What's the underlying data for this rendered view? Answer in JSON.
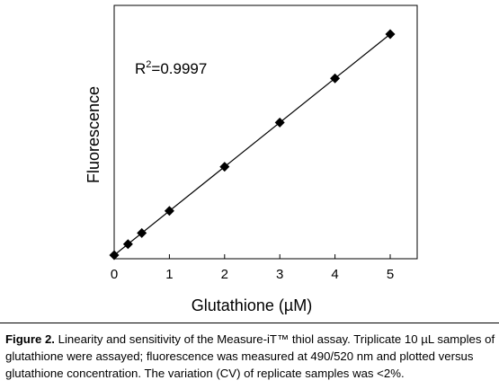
{
  "chart_data": {
    "type": "scatter",
    "xlabel": "Glutathione (µM)",
    "ylabel": "Fluorescence",
    "x_ticks": [
      0,
      1,
      2,
      3,
      4,
      5
    ],
    "xlim": [
      0,
      5.5
    ],
    "grid": false,
    "legend": "none",
    "annotation": {
      "prefix": "R",
      "sup": "2",
      "suffix": "=0.9997"
    },
    "series": [
      {
        "x": [
          0,
          0.25,
          0.5,
          1,
          2,
          3,
          4,
          5
        ],
        "y": [
          0,
          0.05,
          0.1,
          0.2,
          0.4,
          0.6,
          0.8,
          1.0
        ],
        "marker": "diamond",
        "fit_line": true
      }
    ],
    "ylim": [
      0,
      1.05
    ]
  },
  "caption": {
    "label": "Figure 2.",
    "text": " Linearity and sensitivity of the Measure-iT™ thiol assay. Triplicate 10 µL samples of glutathione were assayed; fluorescence was measured at 490/520 nm and plotted versus glutathione concentration. The variation (CV) of replicate samples was <2%."
  }
}
